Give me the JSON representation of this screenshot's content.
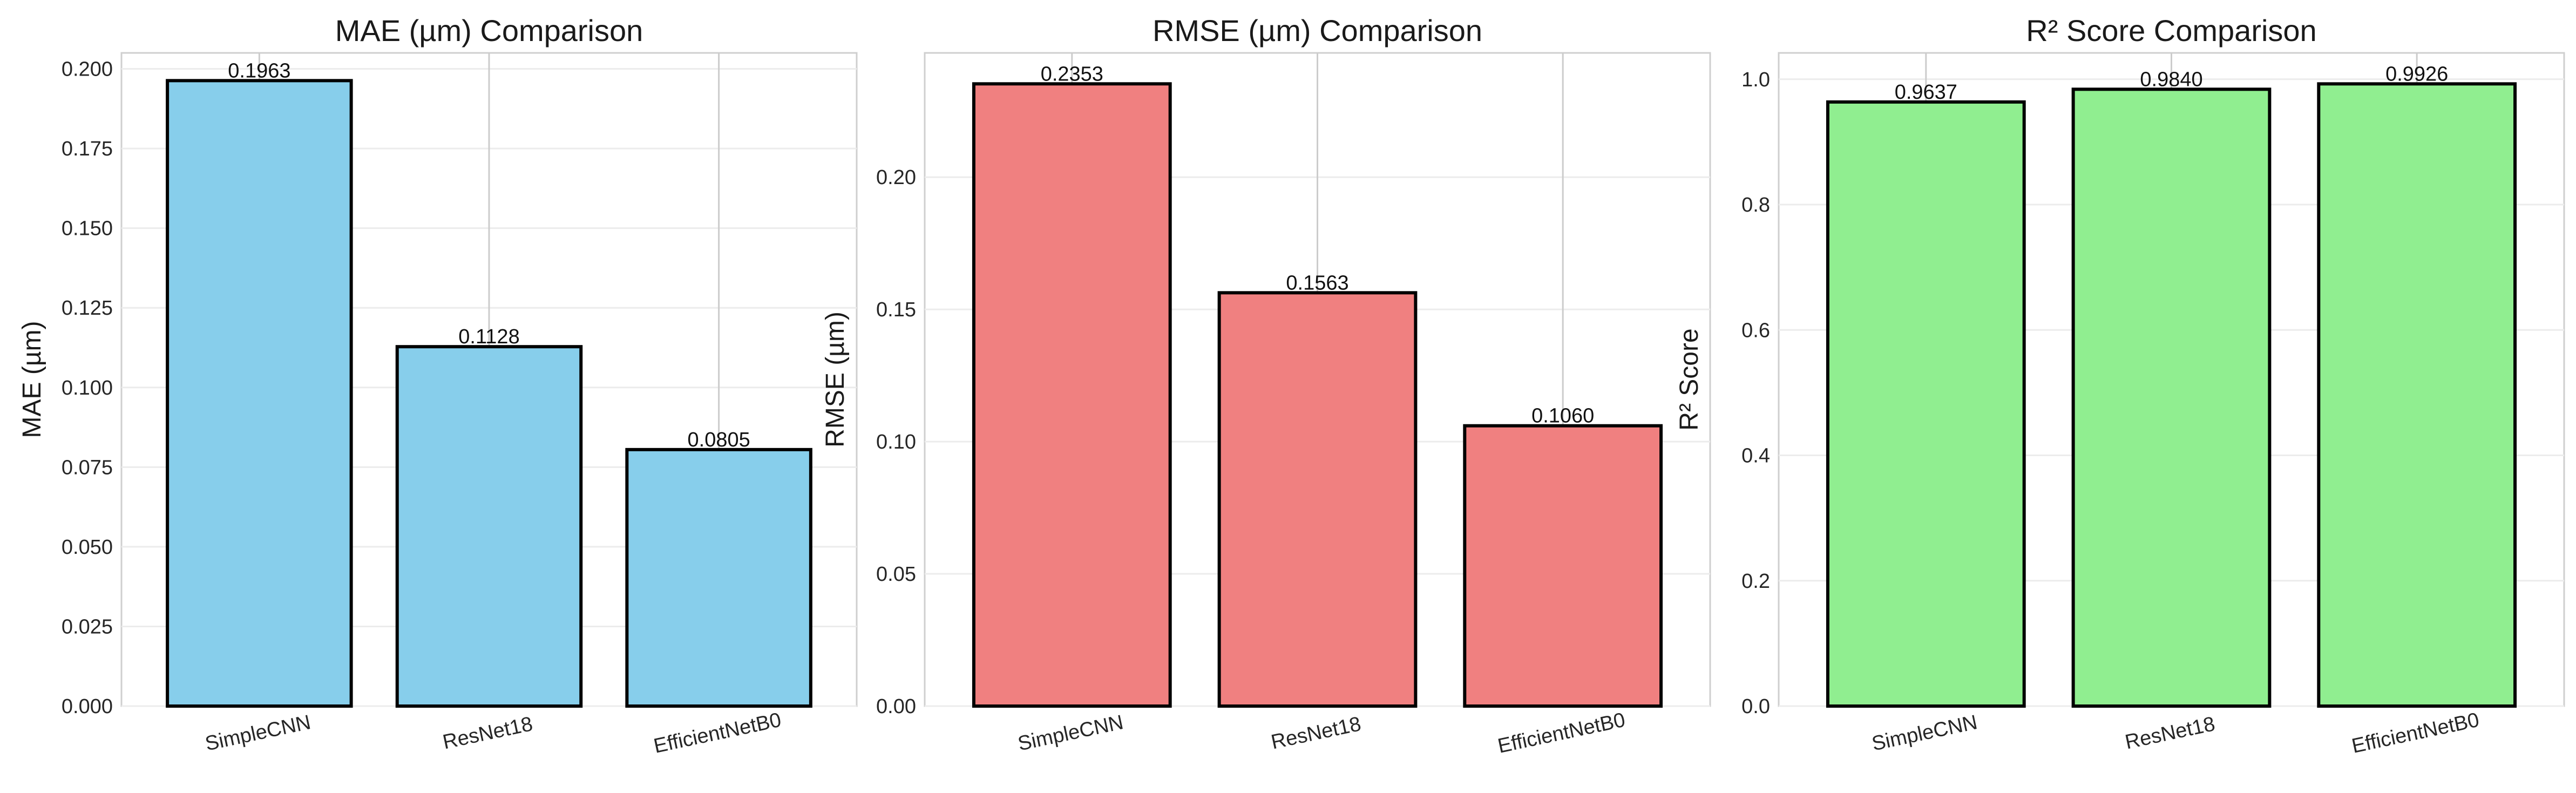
{
  "chart_data": [
    {
      "type": "bar",
      "title": "MAE (µm) Comparison",
      "xlabel": "",
      "ylabel": "MAE (µm)",
      "categories": [
        "SimpleCNN",
        "ResNet18",
        "EfficientNetB0"
      ],
      "values": [
        0.1963,
        0.1128,
        0.0805
      ],
      "value_labels": [
        "0.1963",
        "0.1128",
        "0.0805"
      ],
      "ylim": [
        0,
        0.205
      ],
      "yticks": [
        0.0,
        0.025,
        0.05,
        0.075,
        0.1,
        0.125,
        0.15,
        0.175,
        0.2
      ],
      "ytick_labels": [
        "0.000",
        "0.025",
        "0.050",
        "0.075",
        "0.100",
        "0.125",
        "0.150",
        "0.175",
        "0.200"
      ],
      "color": "#87CEEB",
      "grid": true
    },
    {
      "type": "bar",
      "title": "RMSE (µm) Comparison",
      "xlabel": "",
      "ylabel": "RMSE (µm)",
      "categories": [
        "SimpleCNN",
        "ResNet18",
        "EfficientNetB0"
      ],
      "values": [
        0.2353,
        0.1563,
        0.106
      ],
      "value_labels": [
        "0.2353",
        "0.1563",
        "0.1060"
      ],
      "ylim": [
        0,
        0.247
      ],
      "yticks": [
        0.0,
        0.05,
        0.1,
        0.15,
        0.2
      ],
      "ytick_labels": [
        "0.00",
        "0.05",
        "0.10",
        "0.15",
        "0.20"
      ],
      "color": "#F08080",
      "grid": true
    },
    {
      "type": "bar",
      "title": "R² Score Comparison",
      "xlabel": "",
      "ylabel": "R² Score",
      "categories": [
        "SimpleCNN",
        "ResNet18",
        "EfficientNetB0"
      ],
      "values": [
        0.9637,
        0.984,
        0.9926
      ],
      "value_labels": [
        "0.9637",
        "0.9840",
        "0.9926"
      ],
      "ylim": [
        0,
        1.042
      ],
      "yticks": [
        0.0,
        0.2,
        0.4,
        0.6,
        0.8,
        1.0
      ],
      "ytick_labels": [
        "0.0",
        "0.2",
        "0.4",
        "0.6",
        "0.8",
        "1.0"
      ],
      "color": "#90EE90",
      "grid": true
    }
  ]
}
